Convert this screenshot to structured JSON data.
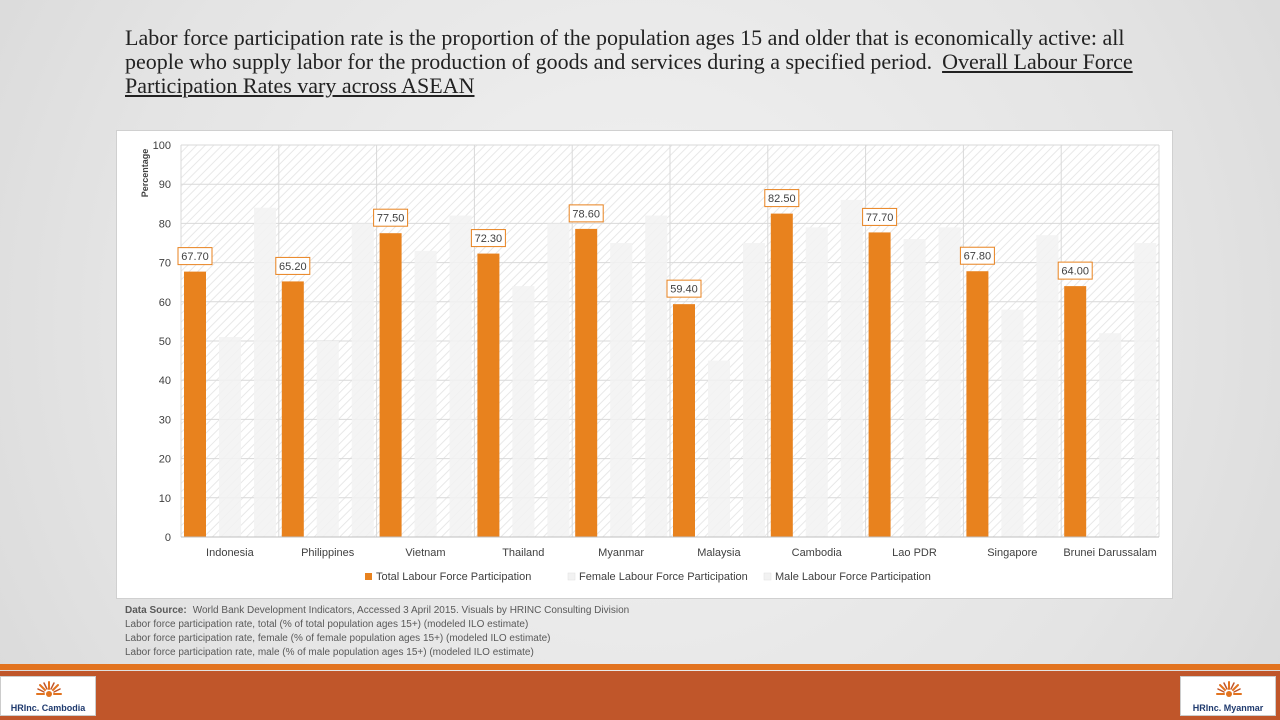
{
  "slide": {
    "title_main": "Labor force participation rate is the proportion of the population ages 15 and older that is economically active: all people who supply labor for the production of goods and services during a specified period.",
    "title_underlined": "Overall Labour Force Participation Rates vary across ASEAN"
  },
  "chart_data": {
    "type": "bar",
    "title": "",
    "ylabel": "Percentage",
    "xlabel": "",
    "ylim": [
      0,
      100
    ],
    "yticks": [
      0,
      10,
      20,
      30,
      40,
      50,
      60,
      70,
      80,
      90,
      100
    ],
    "grid": true,
    "legend_position": "bottom",
    "categories": [
      "Indonesia",
      "Philippines",
      "Vietnam",
      "Thailand",
      "Myanmar",
      "Malaysia",
      "Cambodia",
      "Lao PDR",
      "Singapore",
      "Brunei Darussalam"
    ],
    "series": [
      {
        "name": "Total Labour Force Participation",
        "color": "#e8821e",
        "values": [
          67.7,
          65.2,
          77.5,
          72.3,
          78.6,
          59.4,
          82.5,
          77.7,
          67.8,
          64.0
        ],
        "data_labels": [
          "67.70",
          "65.20",
          "77.50",
          "72.30",
          "78.60",
          "59.40",
          "82.50",
          "77.70",
          "67.80",
          "64.00"
        ]
      },
      {
        "name": "Female Labour Force Participation",
        "color": "#f2f2f2",
        "values": [
          51,
          50,
          73,
          64,
          75,
          45,
          79,
          76,
          58,
          52
        ]
      },
      {
        "name": "Male Labour Force Participation",
        "color": "#f2f2f2",
        "values": [
          84,
          80,
          82,
          80,
          82,
          75,
          86,
          79,
          77,
          75
        ]
      }
    ]
  },
  "source": {
    "label": "Data Source:",
    "text": "World Bank Development Indicators, Accessed 3 April 2015. Visuals by HRINC Consulting Division",
    "notes": [
      "Labor force participation rate, total (% of total population ages 15+) (modeled ILO estimate)",
      "Labor force participation rate, female (% of female population ages 15+) (modeled ILO estimate)",
      "Labor force participation rate, male (% of male population ages 15+) (modeled ILO estimate)"
    ]
  },
  "logos": {
    "left": "HRInc. Cambodia",
    "right": "HRInc. Myanmar"
  },
  "colors": {
    "accent_orange": "#e2731f",
    "footer": "#c0562a"
  }
}
